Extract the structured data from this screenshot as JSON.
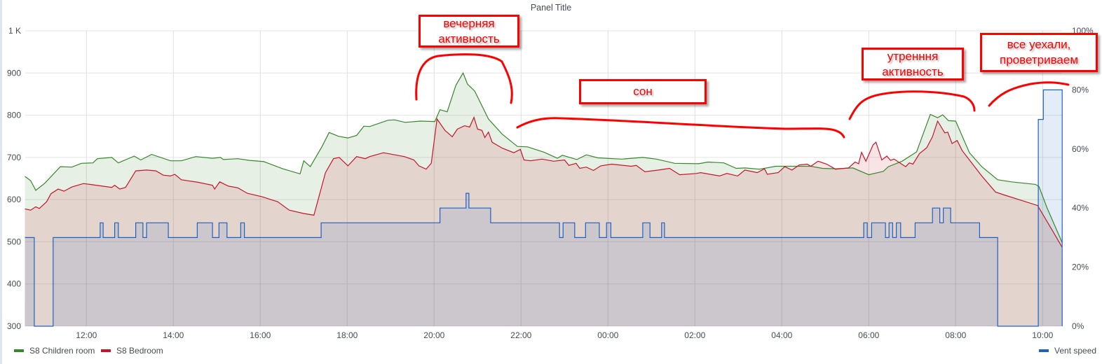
{
  "chart_data": {
    "type": "area",
    "title": "Panel Title",
    "x_ticks": [
      "12:00",
      "14:00",
      "16:00",
      "18:00",
      "20:00",
      "22:00",
      "00:00",
      "02:00",
      "04:00",
      "06:00",
      "08:00",
      "10:00"
    ],
    "xlim": [
      "10:35",
      "10:27"
    ],
    "y_left": {
      "ylim": [
        300,
        1000
      ],
      "ticks": [
        "300",
        "400",
        "500",
        "600",
        "700",
        "800",
        "900",
        "1 K"
      ],
      "tick_values": [
        300,
        400,
        500,
        600,
        700,
        800,
        900,
        1000
      ]
    },
    "y_right": {
      "ylim": [
        0,
        100
      ],
      "ticks": [
        "0%",
        "20%",
        "40%",
        "60%",
        "80%",
        "100%"
      ],
      "tick_values": [
        0,
        20,
        40,
        60,
        80,
        100
      ]
    },
    "grid": true,
    "legend_placement": "bottom",
    "series": [
      {
        "name": "S8 Children room",
        "axis": "left",
        "color": "#37872D",
        "points": [
          [
            "10:35",
            655
          ],
          [
            "10:43",
            645
          ],
          [
            "10:50",
            622
          ],
          [
            "11:02",
            638
          ],
          [
            "11:24",
            678
          ],
          [
            "11:40",
            677
          ],
          [
            "11:53",
            686
          ],
          [
            "12:09",
            687
          ],
          [
            "12:15",
            697
          ],
          [
            "12:35",
            700
          ],
          [
            "12:44",
            687
          ],
          [
            "13:06",
            703
          ],
          [
            "13:15",
            694
          ],
          [
            "13:30",
            707
          ],
          [
            "13:56",
            692
          ],
          [
            "14:11",
            692
          ],
          [
            "14:31",
            702
          ],
          [
            "14:54",
            698
          ],
          [
            "15:05",
            700
          ],
          [
            "15:09",
            695
          ],
          [
            "15:29",
            697
          ],
          [
            "15:45",
            693
          ],
          [
            "16:05",
            690
          ],
          [
            "16:31",
            673
          ],
          [
            "16:55",
            661
          ],
          [
            "17:00",
            692
          ],
          [
            "17:09",
            678
          ],
          [
            "17:25",
            725
          ],
          [
            "17:35",
            759
          ],
          [
            "17:48",
            750
          ],
          [
            "18:01",
            746
          ],
          [
            "18:13",
            752
          ],
          [
            "18:23",
            774
          ],
          [
            "18:31",
            773
          ],
          [
            "18:56",
            788
          ],
          [
            "19:05",
            789
          ],
          [
            "19:20",
            783
          ],
          [
            "19:41",
            786
          ],
          [
            "20:01",
            785
          ],
          [
            "20:08",
            813
          ],
          [
            "20:18",
            808
          ],
          [
            "20:30",
            871
          ],
          [
            "20:40",
            900
          ],
          [
            "20:46",
            874
          ],
          [
            "20:56",
            857
          ],
          [
            "21:15",
            791
          ],
          [
            "21:34",
            755
          ],
          [
            "21:55",
            726
          ],
          [
            "22:09",
            725
          ],
          [
            "22:32",
            712
          ],
          [
            "22:50",
            698
          ],
          [
            "22:57",
            705
          ],
          [
            "23:17",
            695
          ],
          [
            "23:30",
            706
          ],
          [
            "23:46",
            699
          ],
          [
            "00:19",
            696
          ],
          [
            "00:48",
            700
          ],
          [
            "01:07",
            696
          ],
          [
            "01:32",
            686
          ],
          [
            "02:05",
            685
          ],
          [
            "02:18",
            689
          ],
          [
            "02:40",
            687
          ],
          [
            "02:57",
            674
          ],
          [
            "03:09",
            675
          ],
          [
            "03:29",
            672
          ],
          [
            "03:52",
            679
          ],
          [
            "04:17",
            679
          ],
          [
            "04:40",
            679
          ],
          [
            "04:56",
            674
          ],
          [
            "05:15",
            673
          ],
          [
            "05:38",
            675
          ],
          [
            "06:00",
            659
          ],
          [
            "06:20",
            667
          ],
          [
            "06:27",
            678
          ],
          [
            "06:46",
            691
          ],
          [
            "07:06",
            713
          ],
          [
            "07:25",
            802
          ],
          [
            "07:35",
            794
          ],
          [
            "07:42",
            801
          ],
          [
            "07:50",
            787
          ],
          [
            "08:00",
            786
          ],
          [
            "08:19",
            711
          ],
          [
            "08:36",
            678
          ],
          [
            "08:58",
            647
          ],
          [
            "09:17",
            642
          ],
          [
            "09:50",
            636
          ],
          [
            "09:55",
            631
          ],
          [
            "10:06",
            581
          ],
          [
            "10:27",
            498
          ]
        ]
      },
      {
        "name": "S8 Bedroom",
        "axis": "left",
        "color": "#C4162A",
        "points": [
          [
            "10:35",
            578
          ],
          [
            "10:43",
            575
          ],
          [
            "10:50",
            583
          ],
          [
            "10:55",
            579
          ],
          [
            "11:05",
            595
          ],
          [
            "11:11",
            614
          ],
          [
            "11:21",
            625
          ],
          [
            "11:29",
            620
          ],
          [
            "11:40",
            630
          ],
          [
            "11:56",
            638
          ],
          [
            "12:09",
            635
          ],
          [
            "12:35",
            629
          ],
          [
            "12:39",
            634
          ],
          [
            "12:46",
            625
          ],
          [
            "12:54",
            629
          ],
          [
            "13:08",
            668
          ],
          [
            "13:23",
            670
          ],
          [
            "13:36",
            668
          ],
          [
            "13:46",
            658
          ],
          [
            "13:56",
            656
          ],
          [
            "14:02",
            660
          ],
          [
            "14:11",
            647
          ],
          [
            "14:34",
            641
          ],
          [
            "14:54",
            634
          ],
          [
            "14:57",
            625
          ],
          [
            "15:04",
            642
          ],
          [
            "15:16",
            632
          ],
          [
            "15:29",
            628
          ],
          [
            "15:42",
            615
          ],
          [
            "16:02",
            607
          ],
          [
            "16:24",
            595
          ],
          [
            "16:40",
            575
          ],
          [
            "17:00",
            567
          ],
          [
            "17:14",
            563
          ],
          [
            "17:30",
            664
          ],
          [
            "17:41",
            697
          ],
          [
            "17:49",
            700
          ],
          [
            "18:01",
            680
          ],
          [
            "18:13",
            702
          ],
          [
            "18:25",
            697
          ],
          [
            "18:31",
            702
          ],
          [
            "18:50",
            711
          ],
          [
            "19:19",
            702
          ],
          [
            "19:32",
            694
          ],
          [
            "19:39",
            680
          ],
          [
            "19:49",
            672
          ],
          [
            "19:56",
            686
          ],
          [
            "20:04",
            791
          ],
          [
            "20:15",
            764
          ],
          [
            "20:25",
            749
          ],
          [
            "20:32",
            767
          ],
          [
            "20:42",
            775
          ],
          [
            "20:49",
            772
          ],
          [
            "20:55",
            795
          ],
          [
            "21:00",
            767
          ],
          [
            "21:06",
            764
          ],
          [
            "21:10",
            747
          ],
          [
            "21:15",
            760
          ],
          [
            "21:20",
            736
          ],
          [
            "21:34",
            722
          ],
          [
            "21:50",
            711
          ],
          [
            "21:59",
            719
          ],
          [
            "22:04",
            694
          ],
          [
            "22:13",
            692
          ],
          [
            "22:29",
            696
          ],
          [
            "22:45",
            691
          ],
          [
            "23:00",
            694
          ],
          [
            "23:06",
            681
          ],
          [
            "23:16",
            686
          ],
          [
            "23:21",
            674
          ],
          [
            "23:30",
            677
          ],
          [
            "23:40",
            669
          ],
          [
            "23:50",
            680
          ],
          [
            "00:05",
            684
          ],
          [
            "00:32",
            679
          ],
          [
            "00:39",
            681
          ],
          [
            "00:51",
            666
          ],
          [
            "01:10",
            670
          ],
          [
            "01:25",
            674
          ],
          [
            "01:39",
            659
          ],
          [
            "02:02",
            662
          ],
          [
            "02:08",
            664
          ],
          [
            "02:34",
            656
          ],
          [
            "02:44",
            662
          ],
          [
            "02:59",
            656
          ],
          [
            "03:09",
            670
          ],
          [
            "03:26",
            664
          ],
          [
            "03:36",
            673
          ],
          [
            "03:40",
            660
          ],
          [
            "03:55",
            664
          ],
          [
            "04:04",
            678
          ],
          [
            "04:14",
            670
          ],
          [
            "04:24",
            682
          ],
          [
            "04:35",
            684
          ],
          [
            "04:40",
            679
          ],
          [
            "04:50",
            691
          ],
          [
            "05:02",
            684
          ],
          [
            "05:14",
            672
          ],
          [
            "05:32",
            675
          ],
          [
            "05:41",
            689
          ],
          [
            "05:46",
            685
          ],
          [
            "05:50",
            712
          ],
          [
            "05:56",
            691
          ],
          [
            "06:06",
            730
          ],
          [
            "06:10",
            736
          ],
          [
            "06:18",
            694
          ],
          [
            "06:25",
            703
          ],
          [
            "06:30",
            693
          ],
          [
            "06:35",
            696
          ],
          [
            "06:42",
            688
          ],
          [
            "06:51",
            678
          ],
          [
            "06:56",
            687
          ],
          [
            "07:01",
            684
          ],
          [
            "07:10",
            709
          ],
          [
            "07:20",
            723
          ],
          [
            "07:28",
            749
          ],
          [
            "07:35",
            786
          ],
          [
            "07:45",
            758
          ],
          [
            "07:49",
            760
          ],
          [
            "07:55",
            733
          ],
          [
            "08:02",
            740
          ],
          [
            "08:09",
            716
          ],
          [
            "08:36",
            656
          ],
          [
            "08:55",
            618
          ],
          [
            "09:07",
            611
          ],
          [
            "09:27",
            600
          ],
          [
            "09:53",
            586
          ],
          [
            "10:12",
            531
          ],
          [
            "10:27",
            487
          ]
        ]
      },
      {
        "name": "Vent speed",
        "axis": "right",
        "color": "#1F60C4",
        "step": true,
        "points": [
          [
            "10:35",
            30
          ],
          [
            "10:48",
            0
          ],
          [
            "11:14",
            30
          ],
          [
            "12:19",
            35
          ],
          [
            "12:23",
            30
          ],
          [
            "12:39",
            35
          ],
          [
            "12:44",
            30
          ],
          [
            "13:08",
            35
          ],
          [
            "13:18",
            30
          ],
          [
            "13:23",
            35
          ],
          [
            "13:53",
            30
          ],
          [
            "14:33",
            35
          ],
          [
            "14:54",
            30
          ],
          [
            "15:03",
            35
          ],
          [
            "15:14",
            30
          ],
          [
            "15:33",
            35
          ],
          [
            "15:38",
            30
          ],
          [
            "17:24",
            35
          ],
          [
            "20:08",
            40
          ],
          [
            "20:44",
            45
          ],
          [
            "20:48",
            40
          ],
          [
            "21:18",
            35
          ],
          [
            "22:53",
            30
          ],
          [
            "22:58",
            35
          ],
          [
            "23:14",
            30
          ],
          [
            "23:29",
            35
          ],
          [
            "23:48",
            30
          ],
          [
            "23:58",
            35
          ],
          [
            "00:04",
            30
          ],
          [
            "00:48",
            35
          ],
          [
            "00:58",
            30
          ],
          [
            "01:14",
            35
          ],
          [
            "01:18",
            30
          ],
          [
            "05:53",
            35
          ],
          [
            "05:58",
            30
          ],
          [
            "06:04",
            35
          ],
          [
            "06:23",
            30
          ],
          [
            "06:28",
            35
          ],
          [
            "06:33",
            30
          ],
          [
            "06:38",
            35
          ],
          [
            "06:44",
            30
          ],
          [
            "07:04",
            35
          ],
          [
            "07:28",
            40
          ],
          [
            "07:38",
            35
          ],
          [
            "07:43",
            40
          ],
          [
            "07:53",
            35
          ],
          [
            "08:33",
            30
          ],
          [
            "08:58",
            0
          ],
          [
            "09:54",
            70
          ],
          [
            "10:01",
            80
          ],
          [
            "10:27",
            80
          ]
        ]
      }
    ]
  },
  "annotations": [
    {
      "text": "вечерняя\nактивность"
    },
    {
      "text": "сон"
    },
    {
      "text": "утренння\nактивность"
    },
    {
      "text": "все уехали,\nпроветриваем"
    }
  ]
}
